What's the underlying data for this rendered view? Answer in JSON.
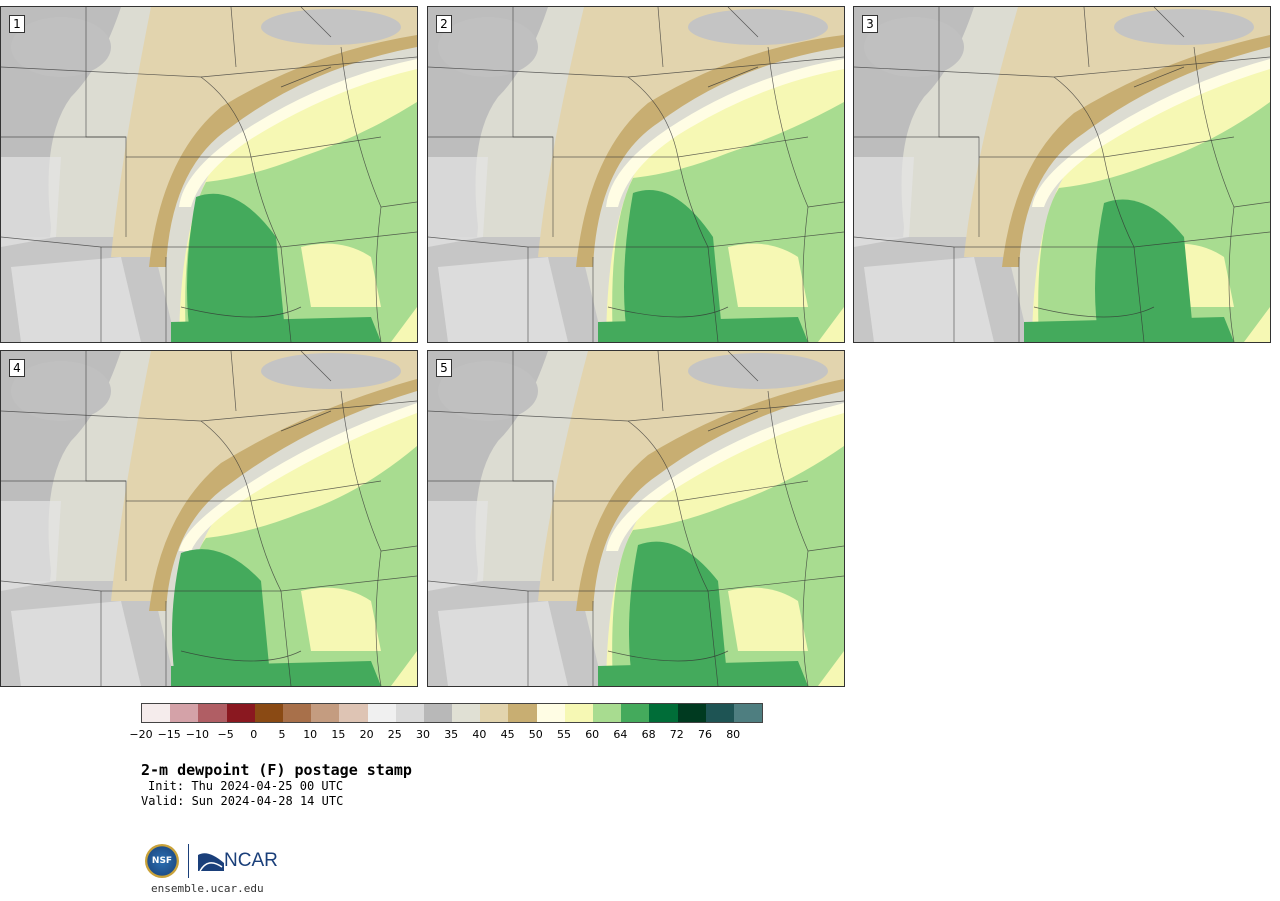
{
  "panels": [
    {
      "label": "1",
      "variant": 0
    },
    {
      "label": "2",
      "variant": 1
    },
    {
      "label": "3",
      "variant": 2
    },
    {
      "label": "4",
      "variant": 3
    },
    {
      "label": "5",
      "variant": 4
    }
  ],
  "colorbar": {
    "colors": [
      "#f5ecec",
      "#d4a2a8",
      "#b05e64",
      "#8a1820",
      "#8a4a14",
      "#a8704a",
      "#c49c80",
      "#dec4b4",
      "#f0f0f0",
      "#dadada",
      "#b8b8b8",
      "#e0e0d4",
      "#e2d4ae",
      "#c8ae72",
      "#fffde4",
      "#f6f8b4",
      "#a8dc90",
      "#44aa5c",
      "#006d38",
      "#003a20",
      "#1e5454",
      "#4e7e80"
    ],
    "ticks": [
      "−20",
      "−15",
      "−10",
      "−5",
      "0",
      "5",
      "10",
      "15",
      "20",
      "25",
      "30",
      "35",
      "40",
      "45",
      "50",
      "55",
      "60",
      "64",
      "68",
      "72",
      "76",
      "80"
    ]
  },
  "title": "2-m dewpoint (F) postage stamp",
  "init": "Init: Thu 2024-04-25 00 UTC",
  "valid": "Valid: Sun 2024-04-28 14 UTC",
  "logos": {
    "nsf_text": "NSF",
    "ncar_text": "NCAR"
  },
  "site": "ensemble.ucar.edu"
}
